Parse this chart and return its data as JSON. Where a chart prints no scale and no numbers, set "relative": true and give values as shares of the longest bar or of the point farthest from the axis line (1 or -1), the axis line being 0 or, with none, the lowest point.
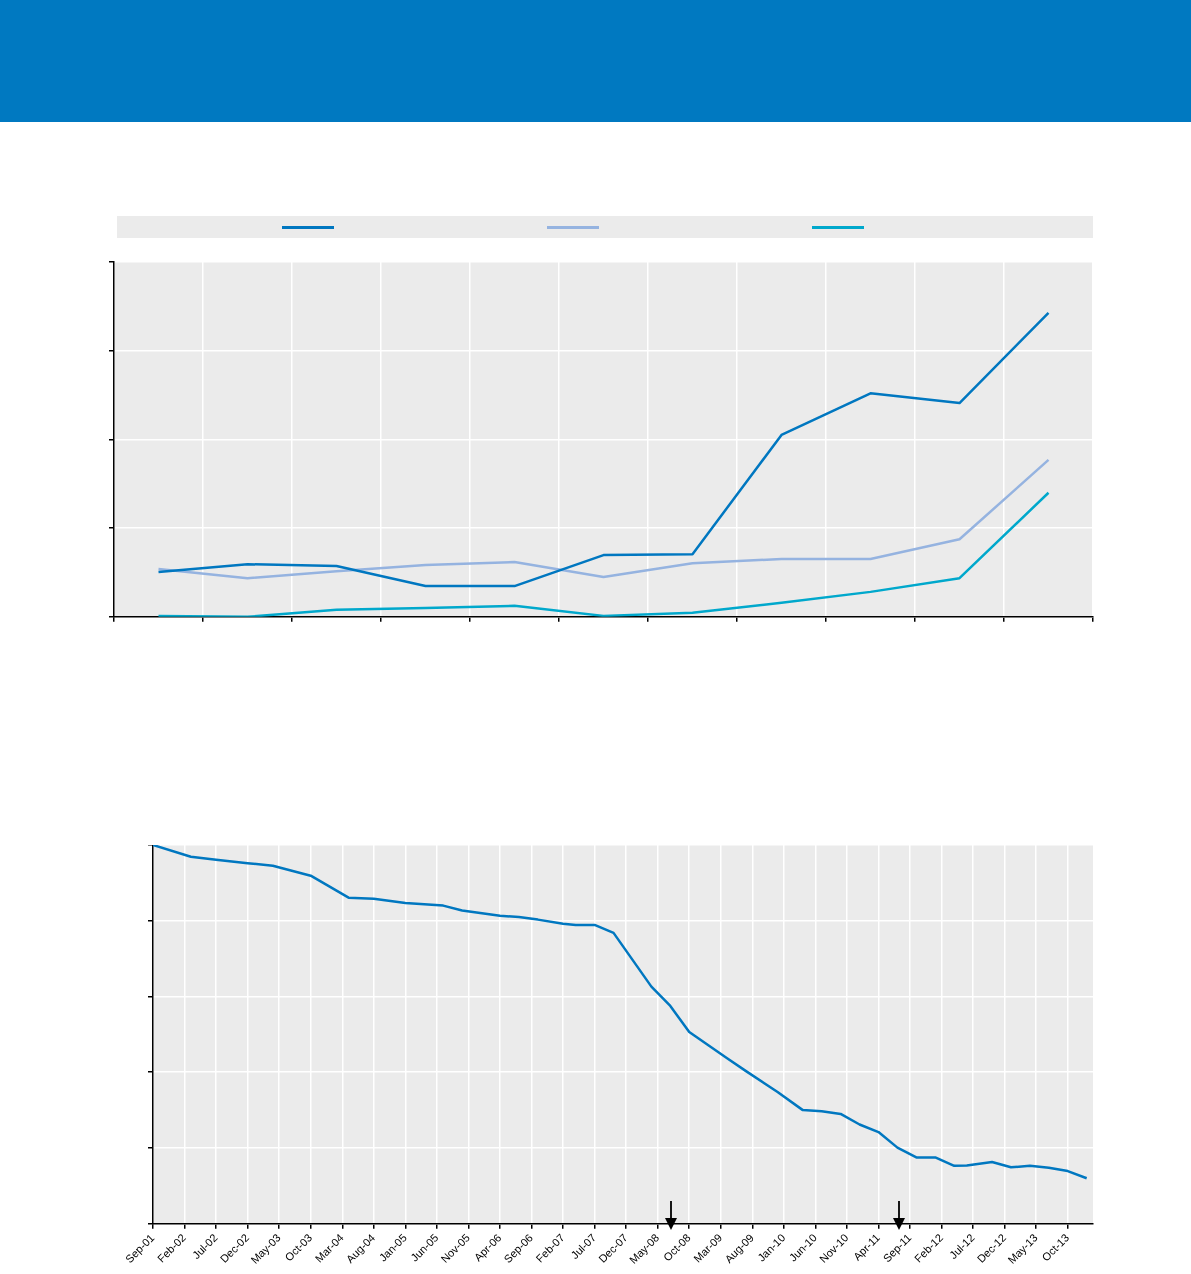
{
  "chart_data": [
    {
      "type": "line",
      "relative": true,
      "categories": [
        null,
        null,
        null,
        null,
        null,
        null,
        null,
        null,
        null,
        null,
        null
      ],
      "grid": true,
      "series": [
        {
          "color": "#0077c0",
          "values": [
            0.147,
            0.173,
            0.167,
            0.101,
            0.101,
            0.203,
            0.206,
            0.598,
            0.735,
            0.703,
            1
          ]
        },
        {
          "color": "#95b3e0",
          "values": [
            0.157,
            0.127,
            0.15,
            0.17,
            0.18,
            0.131,
            0.176,
            0.19,
            0.19,
            0.255,
            0.516
          ]
        },
        {
          "color": "#00a8cc",
          "values": [
            0.003,
            0,
            0.023,
            0.029,
            0.036,
            0.003,
            0.013,
            0.046,
            0.082,
            0.127,
            0.408
          ]
        }
      ]
    },
    {
      "type": "line",
      "relative": true,
      "grid": true,
      "color": "#0077c0",
      "xlim": [
        "2001-09",
        "2014-02"
      ],
      "x": [
        "2001-09",
        "2002-03",
        "2002-07",
        "2002-12",
        "2003-04",
        "2003-10",
        "2004-04",
        "2004-08",
        "2005-01",
        "2005-07",
        "2005-10",
        "2006-04",
        "2006-07",
        "2006-10",
        "2007-02",
        "2007-04",
        "2007-07",
        "2007-10",
        "2008-04",
        "2008-07",
        "2008-10",
        "2009-04",
        "2009-07",
        "2009-12",
        "2010-04",
        "2010-07",
        "2010-10",
        "2011-01",
        "2011-04",
        "2011-07",
        "2011-10",
        "2012-01",
        "2012-04",
        "2012-06",
        "2012-10",
        "2013-01",
        "2013-04",
        "2013-07",
        "2013-10",
        "2014-01"
      ],
      "values": [
        1,
        0.969,
        0.961,
        0.952,
        0.945,
        0.919,
        0.861,
        0.858,
        0.847,
        0.84,
        0.827,
        0.813,
        0.81,
        0.803,
        0.792,
        0.789,
        0.789,
        0.768,
        0.626,
        0.575,
        0.506,
        0.437,
        0.403,
        0.348,
        0.3,
        0.297,
        0.29,
        0.262,
        0.242,
        0.201,
        0.175,
        0.175,
        0.153,
        0.154,
        0.163,
        0.149,
        0.153,
        0.148,
        0.139,
        0.12
      ],
      "xticks": [
        {
          "value": "2001-09",
          "label": "Sep-01"
        },
        {
          "value": "2002-02",
          "label": "Feb-02"
        },
        {
          "value": "2002-07",
          "label": "Jul-02"
        },
        {
          "value": "2002-12",
          "label": "Dec-02"
        },
        {
          "value": "2003-05",
          "label": "May-03"
        },
        {
          "value": "2003-10",
          "label": "Oct-03"
        },
        {
          "value": "2004-03",
          "label": "Mar-04"
        },
        {
          "value": "2004-08",
          "label": "Aug-04"
        },
        {
          "value": "2005-01",
          "label": "Jan-05"
        },
        {
          "value": "2005-06",
          "label": "Jun-05"
        },
        {
          "value": "2005-11",
          "label": "Nov-05"
        },
        {
          "value": "2006-04",
          "label": "Apr-06"
        },
        {
          "value": "2006-09",
          "label": "Sep-06"
        },
        {
          "value": "2007-02",
          "label": "Feb-07"
        },
        {
          "value": "2007-07",
          "label": "Jul-07"
        },
        {
          "value": "2007-12",
          "label": "Dec-07"
        },
        {
          "value": "2008-05",
          "label": "May-08"
        },
        {
          "value": "2008-10",
          "label": "Oct-08"
        },
        {
          "value": "2009-03",
          "label": "Mar-09"
        },
        {
          "value": "2009-08",
          "label": "Aug-09"
        },
        {
          "value": "2010-01",
          "label": "Jan-10"
        },
        {
          "value": "2010-06",
          "label": "Jun-10"
        },
        {
          "value": "2010-11",
          "label": "Nov-10"
        },
        {
          "value": "2011-04",
          "label": "Apr-11"
        },
        {
          "value": "2011-09",
          "label": "Sep-11"
        },
        {
          "value": "2012-02",
          "label": "Feb-12"
        },
        {
          "value": "2012-07",
          "label": "Jul-12"
        },
        {
          "value": "2012-12",
          "label": "Dec-12"
        },
        {
          "value": "2013-05",
          "label": "May-13"
        },
        {
          "value": "2013-10",
          "label": "Oct-13"
        }
      ]
    }
  ]
}
